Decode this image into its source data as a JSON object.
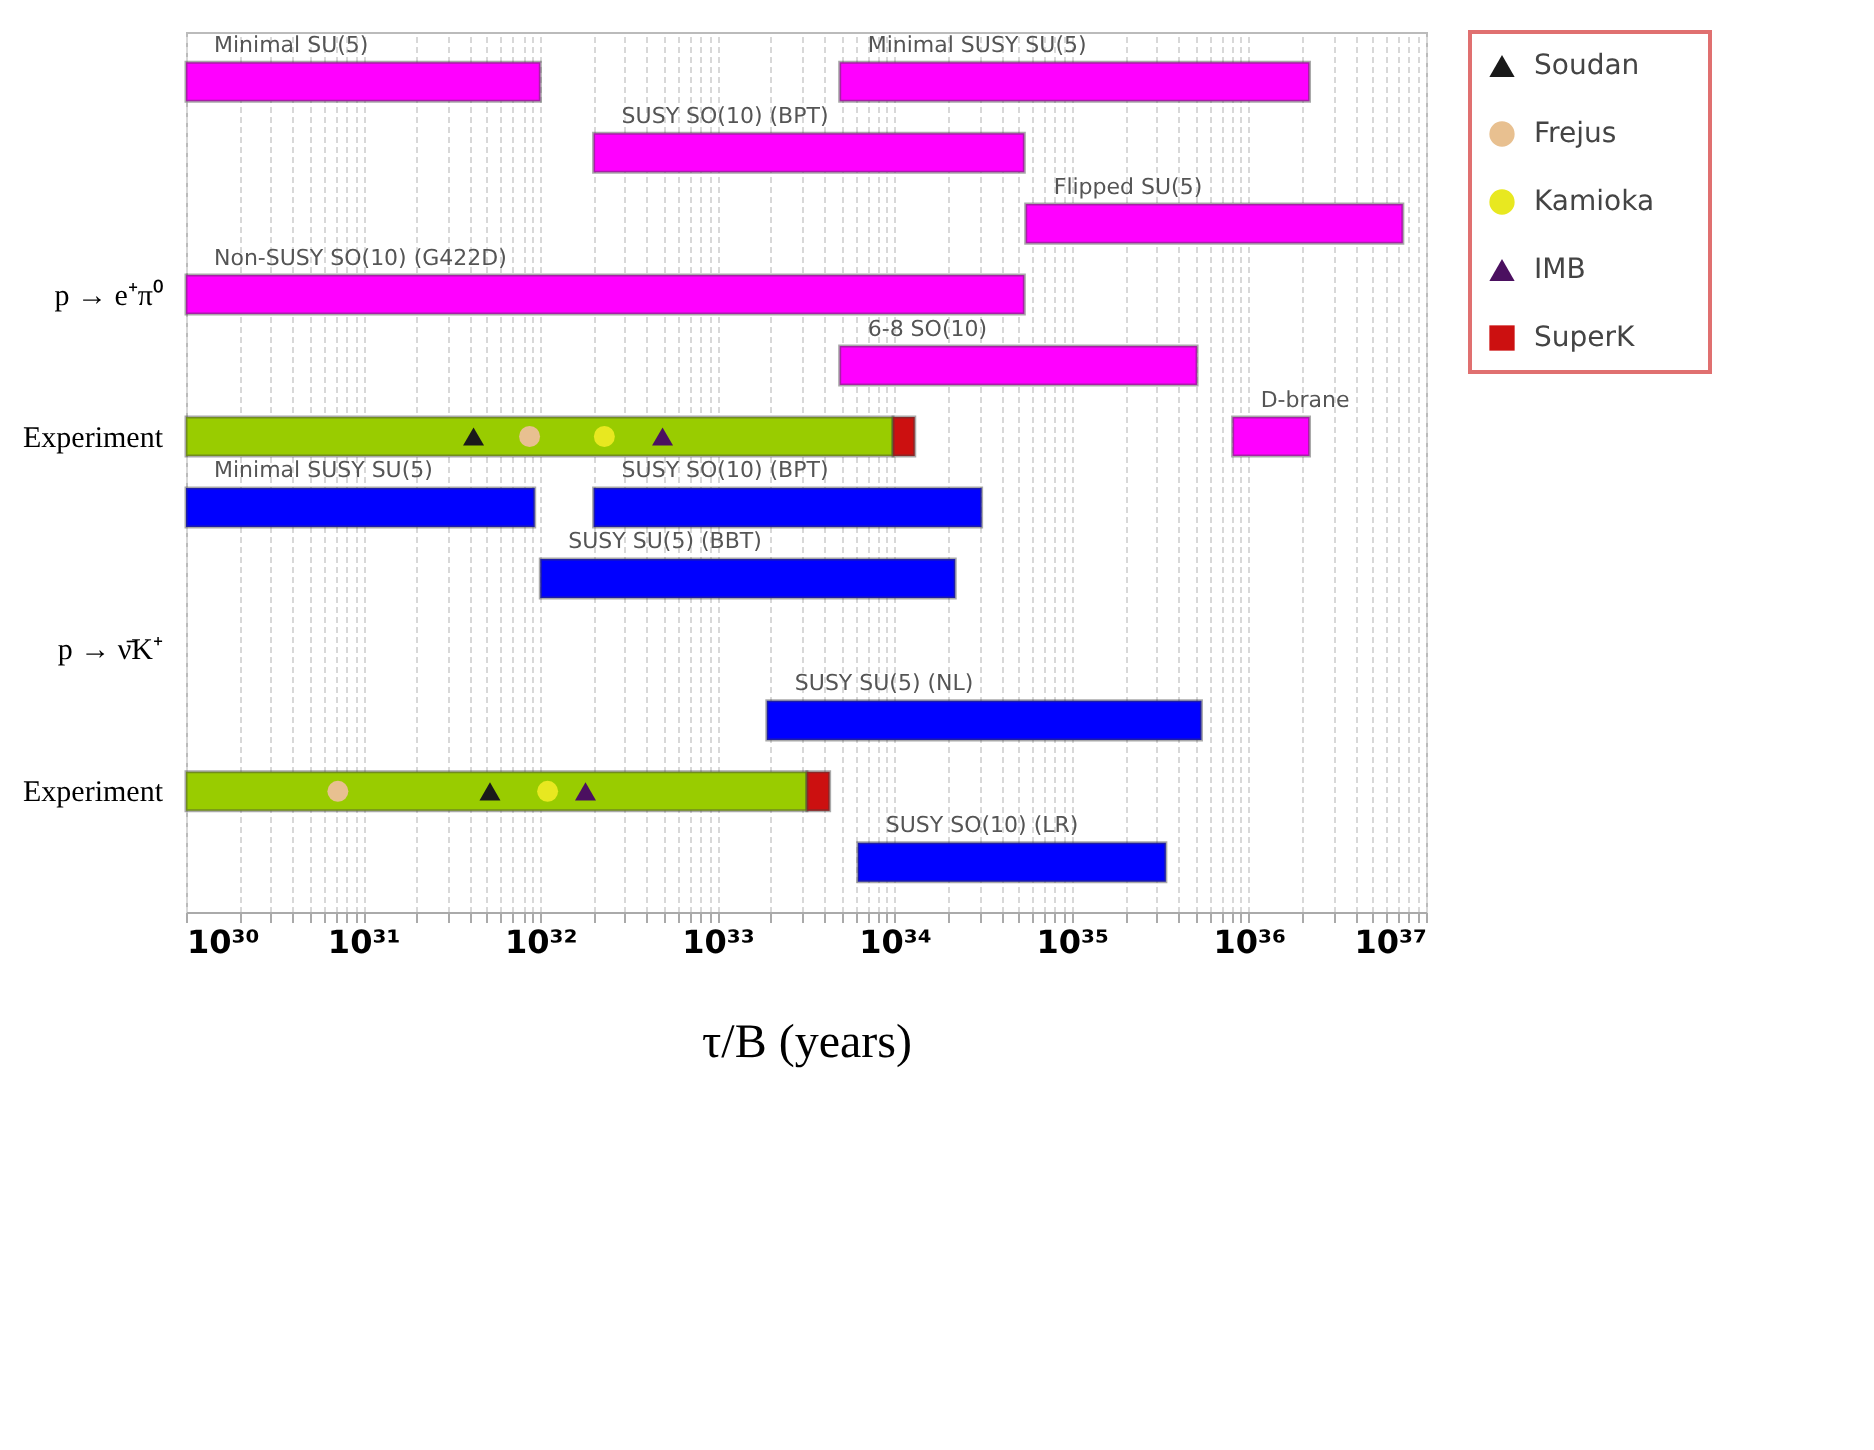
{
  "chart_data": {
    "type": "bar",
    "orientation": "horizontal",
    "xlabel": "τ/B (years)",
    "log": "x",
    "grid": "x",
    "legend": "top right",
    "categories": [
      null,
      null,
      null,
      "p → e⁺π⁰",
      null,
      "Experiment",
      null,
      null,
      "p → ν̄K⁺",
      null,
      "Experiment",
      null
    ],
    "xlim": [
      1e+30,
      1e+37
    ],
    "xticks": [
      {
        "value": 1e+30,
        "label": "10³⁰"
      },
      {
        "value": 2e+30,
        "label": null
      },
      {
        "value": 3e+30,
        "label": null
      },
      {
        "value": 4e+30,
        "label": null
      },
      {
        "value": 5e+30,
        "label": null
      },
      {
        "value": 6e+30,
        "label": null
      },
      {
        "value": 7e+30,
        "label": null
      },
      {
        "value": 8e+30,
        "label": null
      },
      {
        "value": 9e+30,
        "label": null
      },
      {
        "value": 1e+31,
        "label": "10³¹"
      },
      {
        "value": 2e+31,
        "label": null
      },
      {
        "value": 3e+31,
        "label": null
      },
      {
        "value": 4e+31,
        "label": null
      },
      {
        "value": 5e+31,
        "label": null
      },
      {
        "value": 6e+31,
        "label": null
      },
      {
        "value": 7e+31,
        "label": null
      },
      {
        "value": 8e+31,
        "label": null
      },
      {
        "value": 9e+31,
        "label": null
      },
      {
        "value": 1e+32,
        "label": "10³²"
      },
      {
        "value": 2e+32,
        "label": null
      },
      {
        "value": 3e+32,
        "label": null
      },
      {
        "value": 4e+32,
        "label": null
      },
      {
        "value": 5e+32,
        "label": null
      },
      {
        "value": 6e+32,
        "label": null
      },
      {
        "value": 7e+32,
        "label": null
      },
      {
        "value": 8e+32,
        "label": null
      },
      {
        "value": 9e+32,
        "label": null
      },
      {
        "value": 1e+33,
        "label": "10³³"
      },
      {
        "value": 2e+33,
        "label": null
      },
      {
        "value": 3e+33,
        "label": null
      },
      {
        "value": 4e+33,
        "label": null
      },
      {
        "value": 5e+33,
        "label": null
      },
      {
        "value": 6e+33,
        "label": null
      },
      {
        "value": 7e+33,
        "label": null
      },
      {
        "value": 8e+33,
        "label": null
      },
      {
        "value": 9e+33,
        "label": null
      },
      {
        "value": 1e+34,
        "label": "10³⁴"
      },
      {
        "value": 2e+34,
        "label": null
      },
      {
        "value": 3e+34,
        "label": null
      },
      {
        "value": 4e+34,
        "label": null
      },
      {
        "value": 5e+34,
        "label": null
      },
      {
        "value": 6e+34,
        "label": null
      },
      {
        "value": 7e+34,
        "label": null
      },
      {
        "value": 8e+34,
        "label": null
      },
      {
        "value": 9e+34,
        "label": null
      },
      {
        "value": 1e+35,
        "label": "10³⁵"
      },
      {
        "value": 2e+35,
        "label": null
      },
      {
        "value": 3e+35,
        "label": null
      },
      {
        "value": 4e+35,
        "label": null
      },
      {
        "value": 5e+35,
        "label": null
      },
      {
        "value": 6e+35,
        "label": null
      },
      {
        "value": 7e+35,
        "label": null
      },
      {
        "value": 8e+35,
        "label": null
      },
      {
        "value": 9e+35,
        "label": null
      },
      {
        "value": 1e+36,
        "label": "10³⁶"
      },
      {
        "value": 2e+36,
        "label": null
      },
      {
        "value": 3e+36,
        "label": null
      },
      {
        "value": 4e+36,
        "label": null
      },
      {
        "value": 5e+36,
        "label": null
      },
      {
        "value": 6e+36,
        "label": null
      },
      {
        "value": 7e+36,
        "label": null
      },
      {
        "value": 8e+36,
        "label": null
      },
      {
        "value": 9e+36,
        "label": null
      },
      {
        "value": 1e+37,
        "label": "10³⁷"
      }
    ],
    "series": [
      {
        "color": "#ff00ff",
        "base": [
          1e+30,
          2e+32,
          5.5e+34,
          1e+30,
          4.9e+33,
          8.1e+35,
          null,
          null,
          null,
          null,
          null,
          null
        ],
        "values": [
          9.9e+31,
          5.38e+34,
          7.345e+36,
          5.4e+34,
          5.051e+35,
          1.39e+36,
          null,
          null,
          null,
          null,
          null,
          null
        ],
        "value_labels": [
          "Minimal SU(5)",
          "SUSY SO(10) (BPT)",
          "Flipped SU(5)",
          "Non-SUSY SO(10) (G422D)",
          "6-8 SO(10)",
          "D-brane",
          null,
          null,
          null,
          null,
          null,
          null
        ]
      },
      {
        "color": "#ff00ff",
        "base": [
          4.9e+33,
          null,
          null,
          null,
          null,
          null,
          null,
          null,
          null,
          null,
          null,
          null
        ],
        "values": [
          2.195e+36,
          null,
          null,
          null,
          null,
          null,
          null,
          null,
          null,
          null,
          null,
          null
        ],
        "value_labels": [
          "Minimal SUSY SU(5)",
          null,
          null,
          null,
          null,
          null,
          null,
          null,
          null,
          null,
          null,
          null
        ]
      },
      {
        "color": "#0000ff",
        "base": [
          null,
          null,
          null,
          null,
          null,
          null,
          1e+30,
          1e+32,
          null,
          1.9e+33,
          null,
          6.2e+33
        ],
        "values": [
          null,
          null,
          null,
          null,
          null,
          null,
          9.2e+31,
          2.19e+34,
          null,
          5.381e+35,
          null,
          3.338e+35
        ],
        "value_labels": [
          null,
          null,
          null,
          null,
          null,
          null,
          "Minimal SUSY SU(5)",
          "SUSY SU(5) (BBT)",
          null,
          "SUSY SU(5) (NL)",
          null,
          "SUSY SO(10) (LR)"
        ]
      },
      {
        "color": "#0000ff",
        "base": [
          null,
          null,
          null,
          null,
          null,
          null,
          2e+32,
          null,
          null,
          null,
          null,
          null
        ],
        "values": [
          null,
          null,
          null,
          null,
          null,
          null,
          3.08e+34,
          null,
          null,
          null,
          null,
          null
        ],
        "value_labels": [
          null,
          null,
          null,
          null,
          null,
          null,
          "SUSY SO(10) (BPT)",
          null,
          null,
          null,
          null,
          null
        ]
      },
      {
        "color": "#99cc00",
        "base": [
          null,
          null,
          null,
          null,
          null,
          1e+30,
          null,
          null,
          null,
          null,
          1e+30,
          null
        ],
        "values": [
          null,
          null,
          null,
          null,
          null,
          9.8e+33,
          null,
          null,
          null,
          null,
          3.2e+33,
          null
        ]
      },
      {
        "name": "Soudan",
        "type": "scatter",
        "marker": "triangle",
        "color": "#1a1a1a",
        "values": [
          null,
          null,
          null,
          null,
          null,
          4.2e+31,
          null,
          null,
          null,
          null,
          5.2e+31,
          null
        ]
      },
      {
        "name": "Frejus",
        "type": "scatter",
        "marker": "circle",
        "color": "#e8c090",
        "values": [
          null,
          null,
          null,
          null,
          null,
          8.7e+31,
          null,
          null,
          null,
          null,
          7.2e+30,
          null
        ]
      },
      {
        "name": "Kamioka",
        "type": "scatter",
        "marker": "circle",
        "color": "#e8e820",
        "values": [
          null,
          null,
          null,
          null,
          null,
          2.3e+32,
          null,
          null,
          null,
          null,
          1.1e+32,
          null
        ]
      },
      {
        "name": "IMB",
        "type": "scatter",
        "marker": "triangle",
        "color": "#4b1060",
        "values": [
          null,
          null,
          null,
          null,
          null,
          4.9e+32,
          null,
          null,
          null,
          null,
          1.8e+32,
          null
        ]
      },
      {
        "name": "SuperK",
        "color": "#cc1010",
        "base": [
          null,
          null,
          null,
          null,
          null,
          9.8e+33,
          null,
          null,
          null,
          null,
          3.2e+33,
          null
        ],
        "values": [
          null,
          null,
          null,
          null,
          null,
          3.2e+33,
          null,
          null,
          null,
          null,
          1.1e+33,
          null
        ]
      }
    ]
  }
}
